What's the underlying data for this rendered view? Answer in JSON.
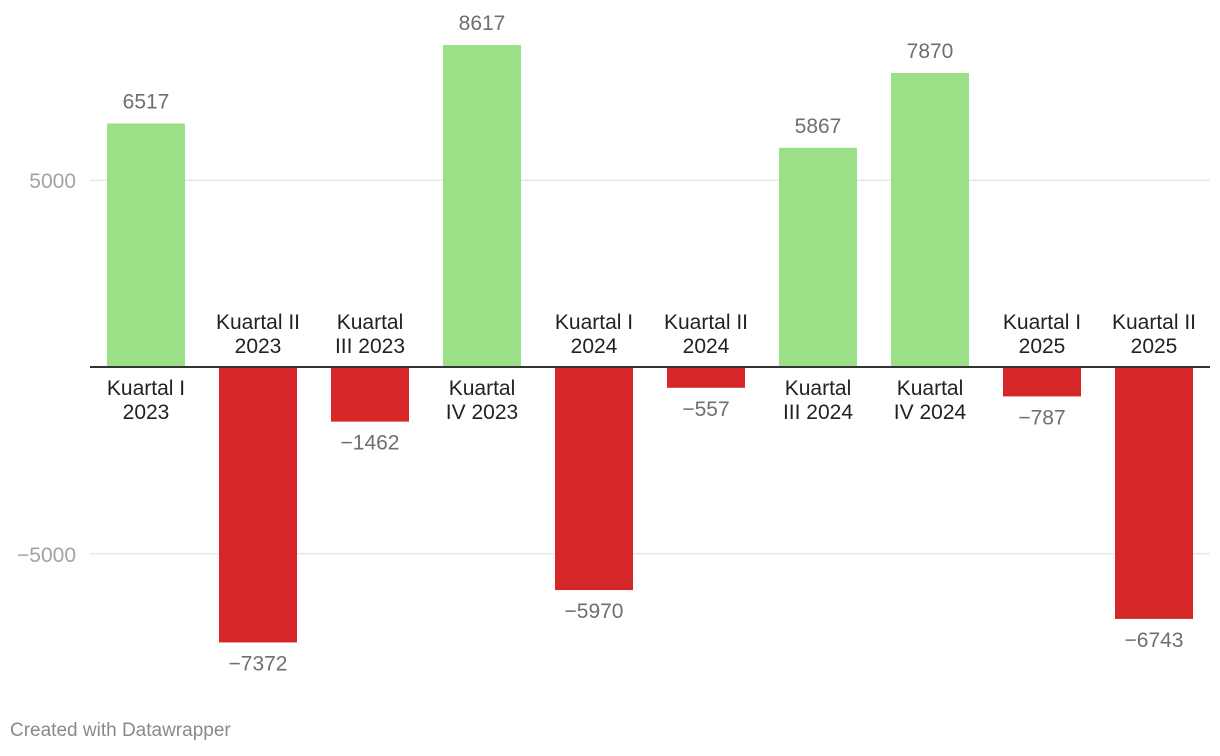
{
  "chart_data": {
    "type": "bar",
    "categories": [
      [
        "Kuartal I",
        "2023"
      ],
      [
        "Kuartal II",
        "2023"
      ],
      [
        "Kuartal",
        "III 2023"
      ],
      [
        "Kuartal",
        "IV 2023"
      ],
      [
        "Kuartal I",
        "2024"
      ],
      [
        "Kuartal II",
        "2024"
      ],
      [
        "Kuartal",
        "III 2024"
      ],
      [
        "Kuartal",
        "IV 2024"
      ],
      [
        "Kuartal I",
        "2025"
      ],
      [
        "Kuartal II",
        "2025"
      ]
    ],
    "values": [
      6517,
      -7372,
      -1462,
      8617,
      -5970,
      -557,
      5867,
      7870,
      -787,
      -6743
    ],
    "value_labels": [
      "6517",
      "−7372",
      "−1462",
      "8617",
      "−5970",
      "−557",
      "5867",
      "7870",
      "−787",
      "−6743"
    ],
    "ylim": [
      -8500,
      8700
    ],
    "yticks": [
      5000,
      -5000
    ],
    "ytick_labels": [
      "5000",
      "−5000"
    ],
    "grid": true,
    "colors": {
      "positive": "#9be087",
      "negative": "#d62728",
      "grid": "#dddddd",
      "baseline": "#333333"
    }
  },
  "footer": {
    "credit": "Created with Datawrapper"
  }
}
